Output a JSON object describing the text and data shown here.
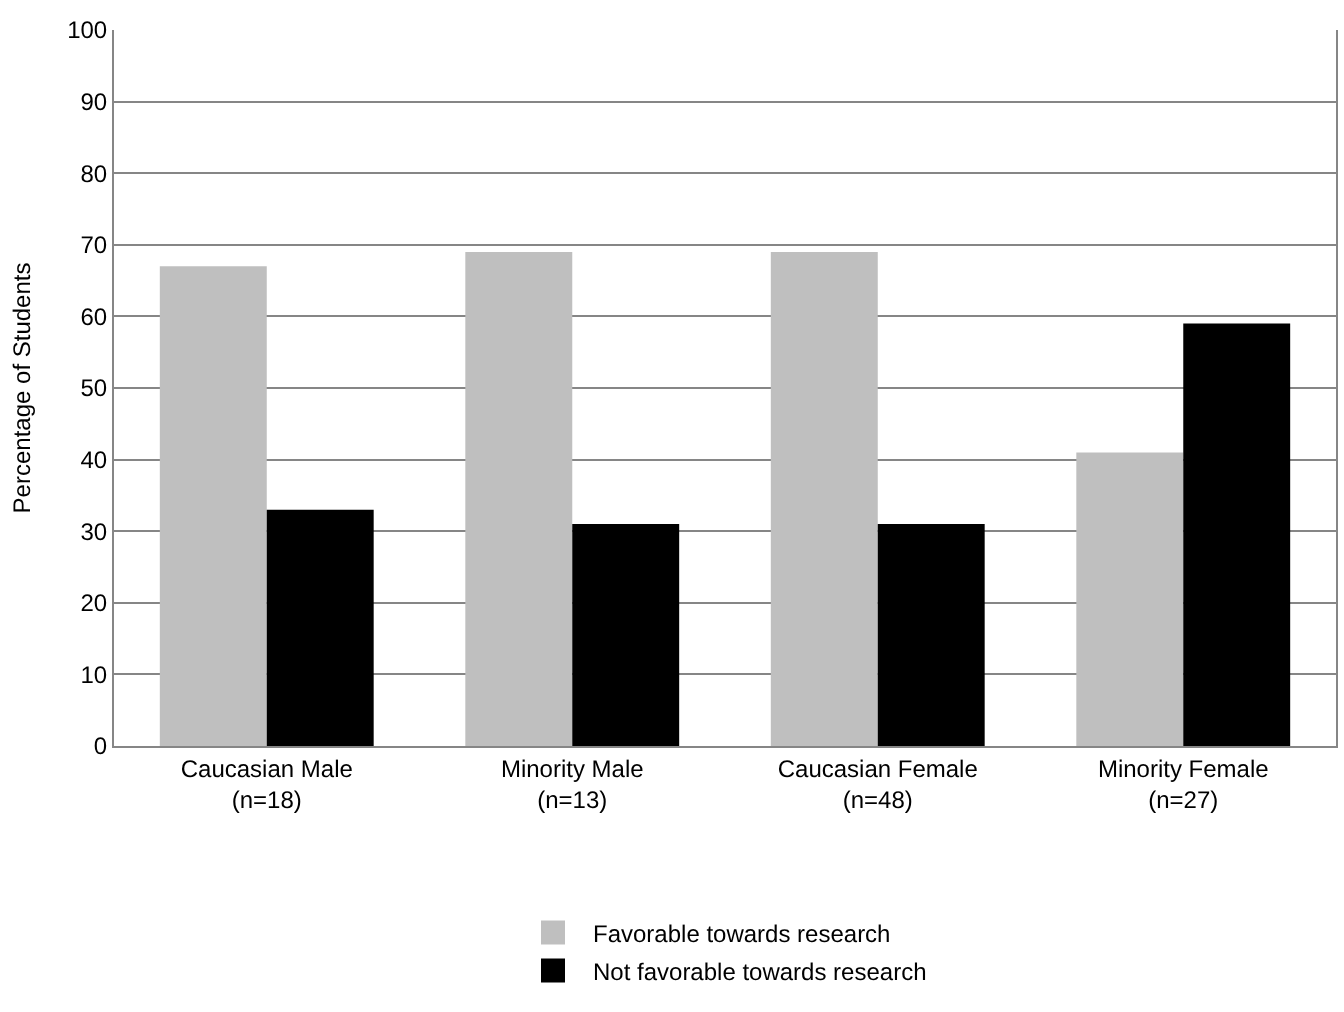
{
  "chart_data": {
    "type": "bar",
    "ylabel": "Percentage of Students",
    "categories": [
      "Caucasian Male\n(n=18)",
      "Minority Male\n(n=13)",
      "Caucasian Female\n(n=48)",
      "Minority Female\n(n=27)"
    ],
    "series": [
      {
        "name": "Favorable towards research",
        "color": "#bfbfbf",
        "values": [
          67,
          69,
          69,
          41
        ]
      },
      {
        "name": "Not favorable towards research",
        "color": "#000000",
        "values": [
          33,
          31,
          31,
          59
        ]
      }
    ],
    "ylim": [
      0,
      100
    ],
    "yticks": [
      0,
      10,
      20,
      30,
      40,
      50,
      60,
      70,
      80,
      90,
      100
    ],
    "grid": "y",
    "legend": "bottom"
  }
}
